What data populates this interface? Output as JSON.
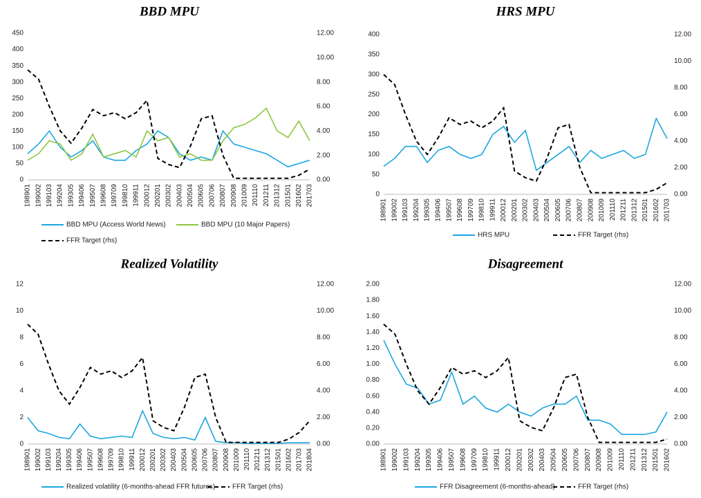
{
  "chart_data": [
    {
      "type": "line",
      "title": "BBD MPU",
      "categories": [
        "198901",
        "199002",
        "199103",
        "199204",
        "199305",
        "199406",
        "199507",
        "199608",
        "199709",
        "199810",
        "199911",
        "200012",
        "200201",
        "200302",
        "200403",
        "200504",
        "200605",
        "200706",
        "200807",
        "200908",
        "201009",
        "201110",
        "201211",
        "201312",
        "201501",
        "201602",
        "201703"
      ],
      "ylim": [
        0,
        450
      ],
      "yticks": [
        0,
        50,
        100,
        150,
        200,
        250,
        300,
        350,
        400,
        450
      ],
      "y2lim": [
        0,
        12
      ],
      "y2ticks": [
        {
          "value": 0,
          "label": "0.00"
        },
        {
          "value": 2,
          "label": "2.00"
        },
        {
          "value": 4,
          "label": "4.00"
        },
        {
          "value": 6,
          "label": "6.00"
        },
        {
          "value": 8,
          "label": "8.00"
        },
        {
          "value": 10,
          "label": "10.00"
        },
        {
          "value": 12,
          "label": "12.00"
        }
      ],
      "series": [
        {
          "name": "BBD MPU (Access World News)",
          "color": "#1ba6df",
          "values": [
            80,
            110,
            150,
            100,
            70,
            90,
            120,
            70,
            60,
            60,
            90,
            110,
            150,
            130,
            80,
            60,
            70,
            60,
            150,
            110,
            100,
            90,
            80,
            60,
            40,
            50,
            60
          ]
        },
        {
          "name": "BBD MPU (10 Major Papers)",
          "color": "#8cc63f",
          "values": [
            60,
            80,
            120,
            110,
            60,
            80,
            140,
            70,
            80,
            90,
            70,
            150,
            120,
            130,
            70,
            80,
            60,
            60,
            120,
            160,
            170,
            190,
            220,
            150,
            130,
            180,
            120
          ]
        },
        {
          "name": "FFR Target (rhs)",
          "color": "#000000",
          "axis": "y2",
          "dashed": true,
          "values": [
            9.0,
            8.25,
            6.0,
            4.0,
            3.0,
            4.25,
            5.75,
            5.25,
            5.5,
            5.0,
            5.5,
            6.5,
            1.75,
            1.25,
            1.0,
            2.75,
            5.0,
            5.25,
            2.0,
            0.125,
            0.125,
            0.125,
            0.125,
            0.125,
            0.125,
            0.375,
            0.875
          ]
        }
      ]
    },
    {
      "type": "line",
      "title": "HRS MPU",
      "categories": [
        "198901",
        "199002",
        "199103",
        "199204",
        "199305",
        "199406",
        "199507",
        "199608",
        "199709",
        "199810",
        "199911",
        "200012",
        "200201",
        "200302",
        "200403",
        "200504",
        "200605",
        "200706",
        "200807",
        "200908",
        "201009",
        "201110",
        "201211",
        "201312",
        "201501",
        "201602",
        "201703"
      ],
      "ylim": [
        0,
        400
      ],
      "yticks": [
        0,
        50,
        100,
        150,
        200,
        250,
        300,
        350,
        400
      ],
      "y2lim": [
        0,
        12
      ],
      "y2ticks": [
        {
          "value": 0,
          "label": "0.00"
        },
        {
          "value": 2,
          "label": "2.00"
        },
        {
          "value": 4,
          "label": "4.00"
        },
        {
          "value": 6,
          "label": "6.00"
        },
        {
          "value": 8,
          "label": "8.00"
        },
        {
          "value": 10,
          "label": "10.00"
        },
        {
          "value": 12,
          "label": "12.00"
        }
      ],
      "series": [
        {
          "name": "HRS MPU",
          "color": "#1ba6df",
          "values": [
            70,
            90,
            120,
            120,
            80,
            110,
            120,
            100,
            90,
            100,
            150,
            170,
            130,
            160,
            60,
            80,
            100,
            120,
            80,
            110,
            90,
            100,
            110,
            90,
            100,
            190,
            140
          ]
        },
        {
          "name": "FFR Target (rhs)",
          "color": "#000000",
          "axis": "y2",
          "dashed": true,
          "values": [
            9.0,
            8.25,
            6.0,
            4.0,
            3.0,
            4.25,
            5.75,
            5.25,
            5.5,
            5.0,
            5.5,
            6.5,
            1.75,
            1.25,
            1.0,
            2.75,
            5.0,
            5.25,
            2.0,
            0.125,
            0.125,
            0.125,
            0.125,
            0.125,
            0.125,
            0.375,
            0.875
          ]
        }
      ]
    },
    {
      "type": "line",
      "title": "Realized Volatility",
      "categories": [
        "198901",
        "199002",
        "199103",
        "199204",
        "199305",
        "199406",
        "199507",
        "199608",
        "199709",
        "199810",
        "199911",
        "200012",
        "200201",
        "200302",
        "200403",
        "200504",
        "200605",
        "200706",
        "200807",
        "200908",
        "201009",
        "201110",
        "201211",
        "201312",
        "201501",
        "201602",
        "201703",
        "201804"
      ],
      "ylim": [
        0,
        12
      ],
      "yticks": [
        0,
        2,
        4,
        6,
        8,
        10,
        12
      ],
      "y2lim": [
        0,
        12
      ],
      "y2ticks": [
        {
          "value": 0,
          "label": "0.00"
        },
        {
          "value": 2,
          "label": "2.00"
        },
        {
          "value": 4,
          "label": "4.00"
        },
        {
          "value": 6,
          "label": "6.00"
        },
        {
          "value": 8,
          "label": "8.00"
        },
        {
          "value": 10,
          "label": "10.00"
        },
        {
          "value": 12,
          "label": "12.00"
        }
      ],
      "series": [
        {
          "name": "Realized volatility (6-months-ahead FFR futures)",
          "color": "#1ba6df",
          "values": [
            2,
            1,
            0.8,
            0.5,
            0.4,
            1.5,
            0.6,
            0.4,
            0.5,
            0.6,
            0.5,
            2.5,
            0.8,
            0.5,
            0.4,
            0.5,
            0.3,
            2,
            0.2,
            0.1,
            0.1,
            0.05,
            0.05,
            0.05,
            0.05,
            0.1,
            0.1,
            0.1
          ]
        },
        {
          "name": "FFR Target (rhs)",
          "color": "#000000",
          "axis": "y2",
          "dashed": true,
          "values": [
            9.0,
            8.25,
            6.0,
            4.0,
            3.0,
            4.25,
            5.75,
            5.25,
            5.5,
            5.0,
            5.5,
            6.5,
            1.75,
            1.25,
            1.0,
            2.75,
            5.0,
            5.25,
            2.0,
            0.125,
            0.125,
            0.125,
            0.125,
            0.125,
            0.125,
            0.375,
            0.875,
            1.75
          ]
        }
      ]
    },
    {
      "type": "line",
      "title": "Disagreement",
      "categories": [
        "198901",
        "199002",
        "199103",
        "199204",
        "199305",
        "199406",
        "199507",
        "199608",
        "199709",
        "199810",
        "199911",
        "200012",
        "200201",
        "200302",
        "200403",
        "200504",
        "200605",
        "200706",
        "200807",
        "200908",
        "201009",
        "201110",
        "201211",
        "201312",
        "201501",
        "201602"
      ],
      "ylim": [
        0,
        2
      ],
      "yticks": [
        {
          "value": 0,
          "label": "0.00"
        },
        {
          "value": 0.2,
          "label": "0.20"
        },
        {
          "value": 0.4,
          "label": "0.40"
        },
        {
          "value": 0.6,
          "label": "0.60"
        },
        {
          "value": 0.8,
          "label": "0.80"
        },
        {
          "value": 1,
          "label": "1.00"
        },
        {
          "value": 1.2,
          "label": "1.20"
        },
        {
          "value": 1.4,
          "label": "1.40"
        },
        {
          "value": 1.6,
          "label": "1.60"
        },
        {
          "value": 1.8,
          "label": "1.80"
        },
        {
          "value": 2,
          "label": "2.00"
        }
      ],
      "y2lim": [
        0,
        12
      ],
      "y2ticks": [
        {
          "value": 0,
          "label": "0.00"
        },
        {
          "value": 2,
          "label": "2.00"
        },
        {
          "value": 4,
          "label": "4.00"
        },
        {
          "value": 6,
          "label": "6.00"
        },
        {
          "value": 8,
          "label": "8.00"
        },
        {
          "value": 10,
          "label": "10.00"
        },
        {
          "value": 12,
          "label": "12.00"
        }
      ],
      "series": [
        {
          "name": "FFR Disagreement (6-months-ahead)",
          "color": "#1ba6df",
          "values": [
            1.3,
            1.0,
            0.75,
            0.7,
            0.5,
            0.55,
            0.9,
            0.5,
            0.6,
            0.45,
            0.4,
            0.5,
            0.4,
            0.35,
            0.45,
            0.5,
            0.5,
            0.6,
            0.3,
            0.3,
            0.25,
            0.12,
            0.12,
            0.12,
            0.15,
            0.4
          ]
        },
        {
          "name": "FFR Target (rhs)",
          "color": "#000000",
          "axis": "y2",
          "dashed": true,
          "values": [
            9.0,
            8.25,
            6.0,
            4.0,
            3.0,
            4.25,
            5.75,
            5.25,
            5.5,
            5.0,
            5.5,
            6.5,
            1.75,
            1.25,
            1.0,
            2.75,
            5.0,
            5.25,
            2.0,
            0.125,
            0.125,
            0.125,
            0.125,
            0.125,
            0.125,
            0.375
          ]
        }
      ]
    }
  ]
}
